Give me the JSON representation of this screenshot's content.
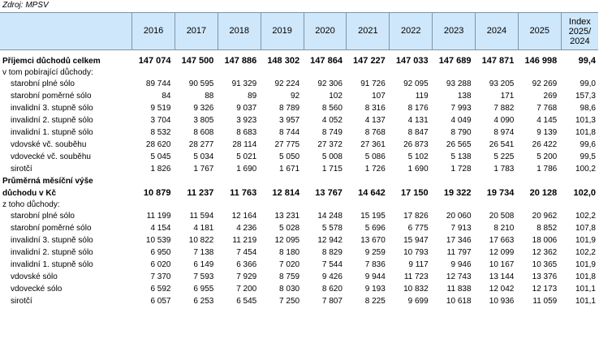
{
  "source": "Zdroj: MPSV",
  "headers": {
    "years": [
      "2016",
      "2017",
      "2018",
      "2019",
      "2020",
      "2021",
      "2022",
      "2023",
      "2024",
      "2025"
    ],
    "index": "Index 2025/ 2024"
  },
  "section1": {
    "title": "Příjemci důchodů celkem",
    "values": [
      "147 074",
      "147 500",
      "147 886",
      "148 302",
      "147 864",
      "147 227",
      "147 033",
      "147 689",
      "147 871",
      "146 998"
    ],
    "index": "99,4",
    "subheading": "v tom pobírající důchody:",
    "rows": [
      {
        "label": "starobní plné sólo",
        "values": [
          "89 744",
          "90 595",
          "91 329",
          "92 224",
          "92 306",
          "91 726",
          "92 095",
          "93 288",
          "93 205",
          "92 269"
        ],
        "index": "99,0"
      },
      {
        "label": "starobní poměrné sólo",
        "values": [
          "84",
          "88",
          "89",
          "92",
          "102",
          "107",
          "119",
          "138",
          "171",
          "269"
        ],
        "index": "157,3"
      },
      {
        "label": "invalidní 3. stupně sólo",
        "values": [
          "9 519",
          "9 326",
          "9 037",
          "8 789",
          "8 560",
          "8 316",
          "8 176",
          "7 993",
          "7 882",
          "7 768"
        ],
        "index": "98,6"
      },
      {
        "label": "invalidní 2. stupně sólo",
        "values": [
          "3 704",
          "3 805",
          "3 923",
          "3 957",
          "4 052",
          "4 137",
          "4 131",
          "4 049",
          "4 090",
          "4 145"
        ],
        "index": "101,3"
      },
      {
        "label": "invalidní 1. stupně sólo",
        "values": [
          "8 532",
          "8 608",
          "8 683",
          "8 744",
          "8 749",
          "8 768",
          "8 847",
          "8 790",
          "8 974",
          "9 139"
        ],
        "index": "101,8"
      },
      {
        "label": "vdovské vč. souběhu",
        "values": [
          "28 620",
          "28 277",
          "28 114",
          "27 775",
          "27 372",
          "27 361",
          "26 873",
          "26 565",
          "26 541",
          "26 422"
        ],
        "index": "99,6"
      },
      {
        "label": "vdovecké vč. souběhu",
        "values": [
          "5 045",
          "5 034",
          "5 021",
          "5 050",
          "5 008",
          "5 086",
          "5 102",
          "5 138",
          "5 225",
          "5 200"
        ],
        "index": "99,5"
      },
      {
        "label": "sirotčí",
        "values": [
          "1 826",
          "1 767",
          "1 690",
          "1 671",
          "1 715",
          "1 726",
          "1 690",
          "1 728",
          "1 783",
          "1 786"
        ],
        "index": "100,2"
      }
    ]
  },
  "section2": {
    "title_line1": "Průměrná měsíční výše",
    "title_line2": "důchodu v Kč",
    "values": [
      "10 879",
      "11 237",
      "11 763",
      "12 814",
      "13 767",
      "14 642",
      "17 150",
      "19 322",
      "19 734",
      "20 128"
    ],
    "index": "102,0",
    "subheading": "z toho důchody:",
    "rows": [
      {
        "label": "starobní plné sólo",
        "values": [
          "11 199",
          "11 594",
          "12 164",
          "13 231",
          "14 248",
          "15 195",
          "17 826",
          "20 060",
          "20 508",
          "20 962"
        ],
        "index": "102,2"
      },
      {
        "label": "starobní poměrné sólo",
        "values": [
          "4 154",
          "4 181",
          "4 236",
          "5 028",
          "5 578",
          "5 696",
          "6 775",
          "7 913",
          "8 210",
          "8 852"
        ],
        "index": "107,8"
      },
      {
        "label": "invalidní 3. stupně sólo",
        "values": [
          "10 539",
          "10 822",
          "11 219",
          "12 095",
          "12 942",
          "13 670",
          "15 947",
          "17 346",
          "17 663",
          "18 006"
        ],
        "index": "101,9"
      },
      {
        "label": "invalidní 2. stupně sólo",
        "values": [
          "6 950",
          "7 138",
          "7 454",
          "8 180",
          "8 829",
          "9 259",
          "10 793",
          "11 797",
          "12 099",
          "12 362"
        ],
        "index": "102,2"
      },
      {
        "label": "invalidní 1. stupně sólo",
        "values": [
          "6 020",
          "6 149",
          "6 366",
          "7 020",
          "7 544",
          "7 836",
          "9 117",
          "9 946",
          "10 167",
          "10 365"
        ],
        "index": "101,9"
      },
      {
        "label": "vdovské sólo",
        "values": [
          "7 370",
          "7 593",
          "7 929",
          "8 759",
          "9 426",
          "9 944",
          "11 723",
          "12 743",
          "13 144",
          "13 376"
        ],
        "index": "101,8"
      },
      {
        "label": "vdovecké sólo",
        "values": [
          "6 592",
          "6 955",
          "7 200",
          "8 030",
          "8 620",
          "9 193",
          "10 832",
          "11 838",
          "12 042",
          "12 173"
        ],
        "index": "101,1"
      },
      {
        "label": "sirotčí",
        "values": [
          "6 057",
          "6 253",
          "6 545",
          "7 250",
          "7 807",
          "8 225",
          "9 699",
          "10 618",
          "10 936",
          "11 059"
        ],
        "index": "101,1"
      }
    ]
  }
}
